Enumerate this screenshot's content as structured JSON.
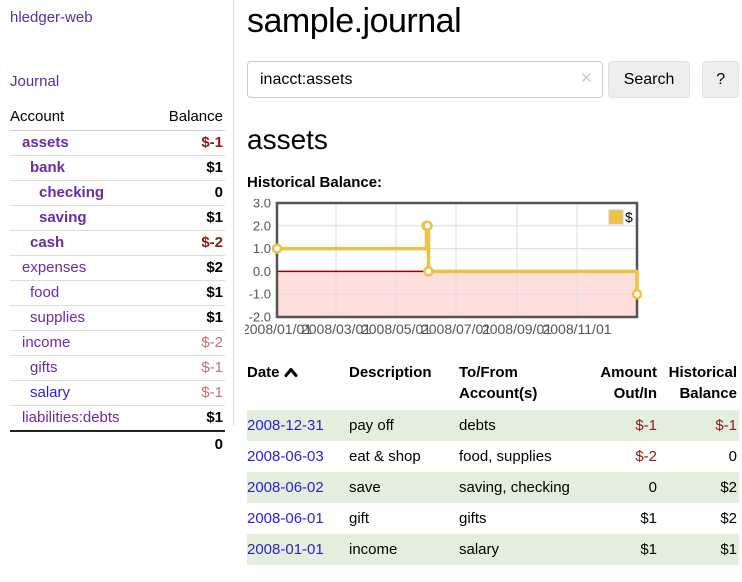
{
  "sidebar": {
    "app_title": "hledger-web",
    "nav": {
      "journal_label": "Journal"
    },
    "accounts_table": {
      "headers": {
        "account": "Account",
        "balance": "Balance"
      },
      "rows": [
        {
          "name": "assets",
          "depth": 1,
          "bold": true,
          "balance": "$-1",
          "negative": "strong",
          "link_color": "purple"
        },
        {
          "name": "bank",
          "depth": 2,
          "bold": true,
          "balance": "$1",
          "negative": "none",
          "link_color": "purple"
        },
        {
          "name": "checking",
          "depth": 3,
          "bold": true,
          "balance": "0",
          "negative": "none",
          "link_color": "purple"
        },
        {
          "name": "saving",
          "depth": 3,
          "bold": true,
          "balance": "$1",
          "negative": "none",
          "link_color": "purple"
        },
        {
          "name": "cash",
          "depth": 2,
          "bold": true,
          "balance": "$-2",
          "negative": "strong",
          "link_color": "purple"
        },
        {
          "name": "expenses",
          "depth": 1,
          "bold": false,
          "balance": "$2",
          "negative": "none",
          "link_color": "purple"
        },
        {
          "name": "food",
          "depth": 2,
          "bold": false,
          "balance": "$1",
          "negative": "none",
          "link_color": "purple"
        },
        {
          "name": "supplies",
          "depth": 2,
          "bold": false,
          "balance": "$1",
          "negative": "none",
          "link_color": "purple"
        },
        {
          "name": "income",
          "depth": 1,
          "bold": false,
          "balance": "$-2",
          "negative": "soft",
          "link_color": "purple"
        },
        {
          "name": "gifts",
          "depth": 2,
          "bold": false,
          "balance": "$-1",
          "negative": "soft",
          "link_color": "purple"
        },
        {
          "name": "salary",
          "depth": 2,
          "bold": false,
          "balance": "$-1",
          "negative": "soft",
          "link_color": "blue"
        },
        {
          "name": "liabilities:debts",
          "depth": 1,
          "bold": false,
          "balance": "$1",
          "negative": "none",
          "link_color": "purple"
        }
      ],
      "total": "0"
    }
  },
  "header": {
    "title": "sample.journal"
  },
  "search": {
    "query": "inacct:assets",
    "clear_icon": "✕",
    "search_button": "Search",
    "help_button": "?"
  },
  "account_page": {
    "heading": "assets",
    "chart_label": "Historical Balance:"
  },
  "chart_data": {
    "type": "line",
    "title": "Historical Balance",
    "step": true,
    "series": [
      {
        "name": "$",
        "color": "#edc240",
        "points_days_value": [
          [
            0,
            1
          ],
          [
            152,
            2
          ],
          [
            153,
            2
          ],
          [
            154,
            0
          ],
          [
            366,
            -1
          ]
        ]
      }
    ],
    "x_ticks": [
      {
        "day": 0,
        "label": "2008/01/01"
      },
      {
        "day": 60,
        "label": "2008/03/01"
      },
      {
        "day": 121,
        "label": "2008/05/01"
      },
      {
        "day": 182,
        "label": "2008/07/01"
      },
      {
        "day": 244,
        "label": "2008/09/01"
      },
      {
        "day": 305,
        "label": "2008/11/01"
      }
    ],
    "y_ticks": [
      3.0,
      2.0,
      1.0,
      0.0,
      -1.0,
      -2.0
    ],
    "ylim": [
      -2,
      3
    ],
    "xlim_days": [
      0,
      366
    ],
    "legend_position": "top-right",
    "colors": {
      "line": "#edc240",
      "marker_fill": "#ffffff",
      "negative_region": "#ffdede",
      "zero_line": "#990000",
      "grid": "#dddddd",
      "border": "#545454",
      "tick_text": "#545454"
    }
  },
  "register_table": {
    "headers": {
      "date": "Date",
      "description": "Description",
      "accounts": "To/From Account(s)",
      "amount": "Amount Out/In",
      "balance": "Historical Balance"
    },
    "rows": [
      {
        "date": "2008-12-31",
        "description": "pay off",
        "accounts": "debts",
        "amount": "$-1",
        "amount_negative": true,
        "balance": "$-1",
        "balance_negative": true
      },
      {
        "date": "2008-06-03",
        "description": "eat & shop",
        "accounts": "food, supplies",
        "amount": "$-2",
        "amount_negative": true,
        "balance": "0",
        "balance_negative": false
      },
      {
        "date": "2008-06-02",
        "description": "save",
        "accounts": "saving, checking",
        "amount": "0",
        "amount_negative": false,
        "balance": "$2",
        "balance_negative": false
      },
      {
        "date": "2008-06-01",
        "description": "gift",
        "accounts": "gifts",
        "amount": "$1",
        "amount_negative": false,
        "balance": "$2",
        "balance_negative": false
      },
      {
        "date": "2008-01-01",
        "description": "income",
        "accounts": "salary",
        "amount": "$1",
        "amount_negative": false,
        "balance": "$1",
        "balance_negative": false
      }
    ]
  }
}
